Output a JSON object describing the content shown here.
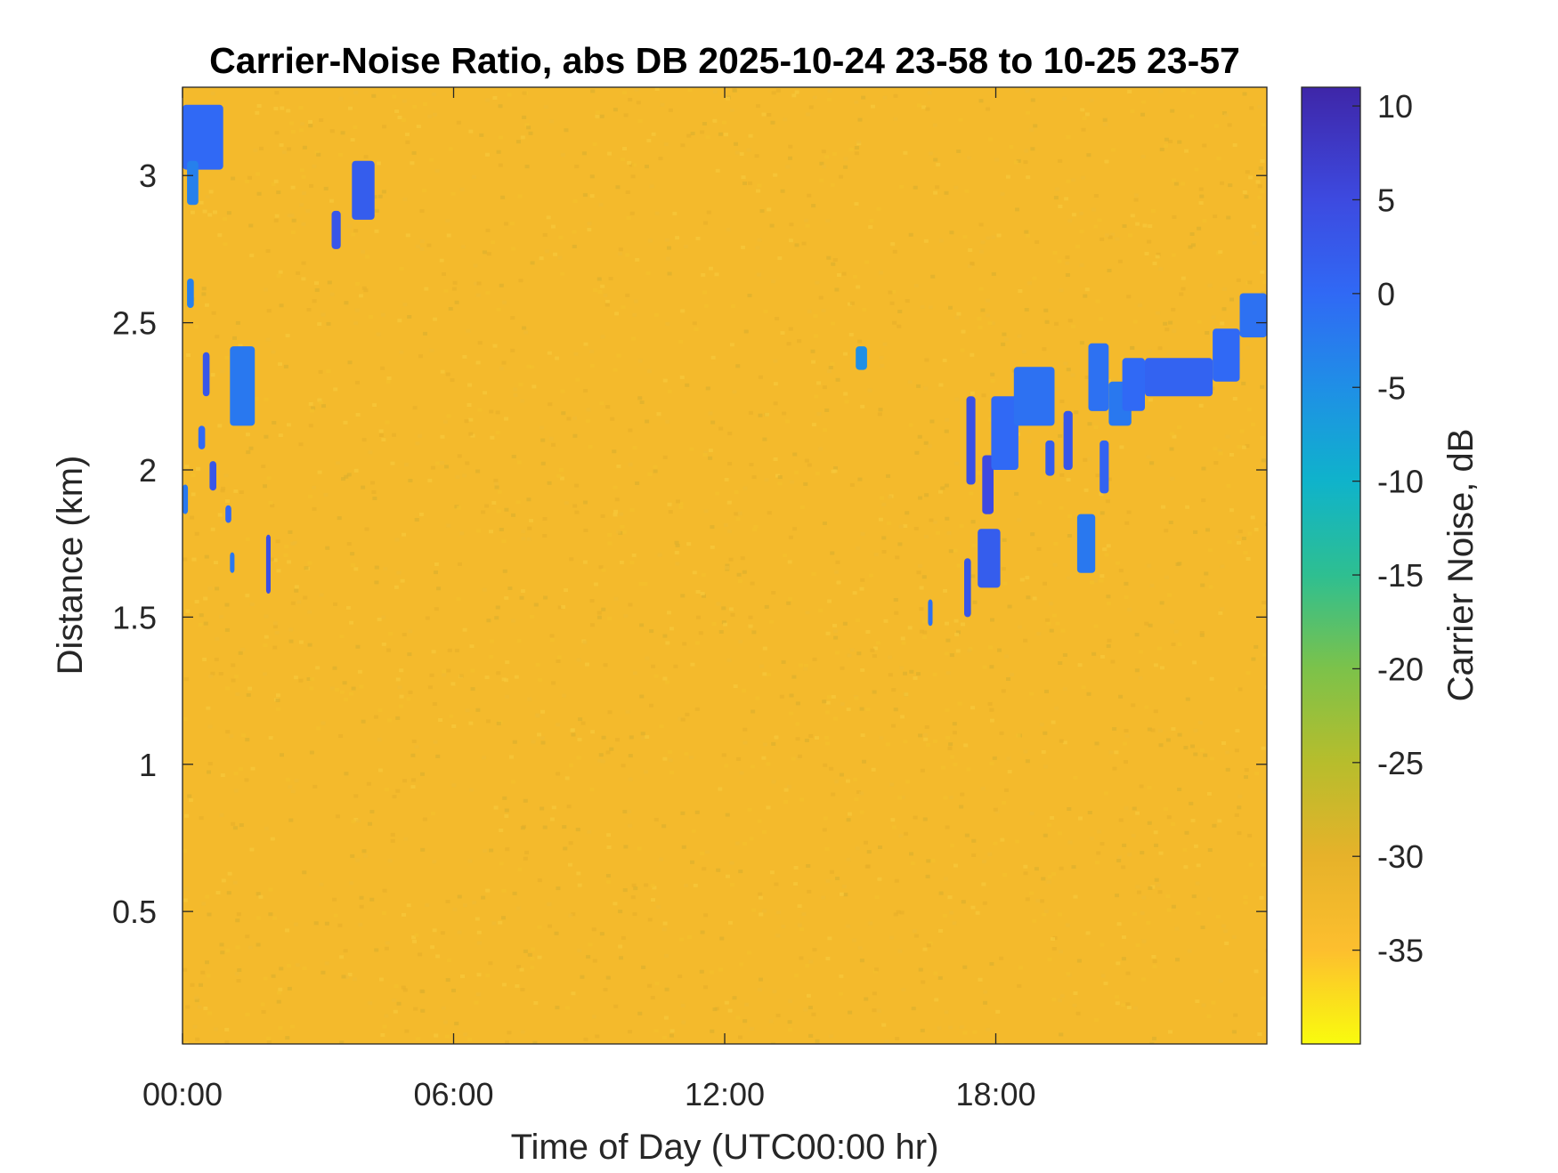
{
  "chart_data": {
    "type": "heatmap",
    "title": "Carrier-Noise Ratio, abs DB 2025-10-24 23-58 to 10-25 23-57",
    "xlabel": "Time of Day (UTC00:00 hr)",
    "ylabel": "Distance (km)",
    "colorbar_label": "Carrier Noise, dB",
    "xlim_hours": [
      0,
      24
    ],
    "x_ticks": [
      {
        "value": 0,
        "label": "00:00"
      },
      {
        "value": 6,
        "label": "06:00"
      },
      {
        "value": 12,
        "label": "12:00"
      },
      {
        "value": 18,
        "label": "18:00"
      }
    ],
    "ylim_km": [
      0.05,
      3.3
    ],
    "y_ticks": [
      {
        "value": 0.5,
        "label": "0.5"
      },
      {
        "value": 1,
        "label": "1"
      },
      {
        "value": 1.5,
        "label": "1.5"
      },
      {
        "value": 2,
        "label": "2"
      },
      {
        "value": 2.5,
        "label": "2.5"
      },
      {
        "value": 3,
        "label": "3"
      }
    ],
    "clim_db": [
      -40,
      11
    ],
    "colorbar_ticks": [
      {
        "value": 10,
        "label": "10"
      },
      {
        "value": 5,
        "label": "5"
      },
      {
        "value": 0,
        "label": "0"
      },
      {
        "value": -5,
        "label": "-5"
      },
      {
        "value": -10,
        "label": "-10"
      },
      {
        "value": -15,
        "label": "-15"
      },
      {
        "value": -20,
        "label": "-20"
      },
      {
        "value": -25,
        "label": "-25"
      },
      {
        "value": -30,
        "label": "-30"
      },
      {
        "value": -35,
        "label": "-35"
      }
    ],
    "background_level_db": -33,
    "colormap_stops": [
      {
        "value": -40,
        "color": "#f9fb0e"
      },
      {
        "value": -35,
        "color": "#fdbf2e"
      },
      {
        "value": -30,
        "color": "#e6b22a"
      },
      {
        "value": -25,
        "color": "#b7bd2c"
      },
      {
        "value": -20,
        "color": "#7cc24a"
      },
      {
        "value": -15,
        "color": "#2ebf91"
      },
      {
        "value": -10,
        "color": "#0fb3cb"
      },
      {
        "value": -5,
        "color": "#1f8fe6"
      },
      {
        "value": 0,
        "color": "#3069f5"
      },
      {
        "value": 5,
        "color": "#3d4ae0"
      },
      {
        "value": 11,
        "color": "#3e26a8"
      }
    ],
    "features": [
      {
        "t0": 0.0,
        "t1": 0.9,
        "d0": 3.02,
        "d1": 3.24,
        "level_db": 0
      },
      {
        "t0": 0.1,
        "t1": 0.35,
        "d0": 2.9,
        "d1": 3.05,
        "level_db": -3
      },
      {
        "t0": 3.3,
        "t1": 3.5,
        "d0": 2.75,
        "d1": 2.88,
        "level_db": 3
      },
      {
        "t0": 3.75,
        "t1": 4.25,
        "d0": 2.85,
        "d1": 3.05,
        "level_db": 2
      },
      {
        "t0": 0.1,
        "t1": 0.25,
        "d0": 2.55,
        "d1": 2.65,
        "level_db": -3
      },
      {
        "t0": 0.45,
        "t1": 0.6,
        "d0": 2.25,
        "d1": 2.4,
        "level_db": 3
      },
      {
        "t0": 1.05,
        "t1": 1.6,
        "d0": 2.15,
        "d1": 2.42,
        "level_db": -2
      },
      {
        "t0": 0.35,
        "t1": 0.5,
        "d0": 2.07,
        "d1": 2.15,
        "level_db": 0
      },
      {
        "t0": 0.6,
        "t1": 0.75,
        "d0": 1.93,
        "d1": 2.03,
        "level_db": 3
      },
      {
        "t0": 0.0,
        "t1": 0.12,
        "d0": 1.85,
        "d1": 1.95,
        "level_db": -2
      },
      {
        "t0": 0.95,
        "t1": 1.08,
        "d0": 1.82,
        "d1": 1.88,
        "level_db": 0
      },
      {
        "t0": 1.05,
        "t1": 1.15,
        "d0": 1.65,
        "d1": 1.72,
        "level_db": -2
      },
      {
        "t0": 1.85,
        "t1": 1.95,
        "d0": 1.58,
        "d1": 1.78,
        "level_db": 4
      },
      {
        "t0": 14.9,
        "t1": 15.15,
        "d0": 2.34,
        "d1": 2.42,
        "level_db": -5
      },
      {
        "t0": 16.5,
        "t1": 16.6,
        "d0": 1.47,
        "d1": 1.56,
        "level_db": -1
      },
      {
        "t0": 17.3,
        "t1": 17.45,
        "d0": 1.5,
        "d1": 1.7,
        "level_db": 3
      },
      {
        "t0": 17.35,
        "t1": 17.55,
        "d0": 1.95,
        "d1": 2.25,
        "level_db": 4
      },
      {
        "t0": 17.6,
        "t1": 18.1,
        "d0": 1.6,
        "d1": 1.8,
        "level_db": 2
      },
      {
        "t0": 17.7,
        "t1": 17.95,
        "d0": 1.85,
        "d1": 2.05,
        "level_db": 5
      },
      {
        "t0": 17.9,
        "t1": 18.5,
        "d0": 2.0,
        "d1": 2.25,
        "level_db": 0
      },
      {
        "t0": 18.4,
        "t1": 19.3,
        "d0": 2.15,
        "d1": 2.35,
        "level_db": -1
      },
      {
        "t0": 19.1,
        "t1": 19.3,
        "d0": 1.98,
        "d1": 2.1,
        "level_db": 2
      },
      {
        "t0": 19.5,
        "t1": 19.7,
        "d0": 2.0,
        "d1": 2.2,
        "level_db": 3
      },
      {
        "t0": 19.8,
        "t1": 20.2,
        "d0": 1.65,
        "d1": 1.85,
        "level_db": -2
      },
      {
        "t0": 20.05,
        "t1": 20.5,
        "d0": 2.2,
        "d1": 2.43,
        "level_db": -1
      },
      {
        "t0": 20.3,
        "t1": 20.5,
        "d0": 1.92,
        "d1": 2.1,
        "level_db": 1
      },
      {
        "t0": 20.5,
        "t1": 21.0,
        "d0": 2.15,
        "d1": 2.3,
        "level_db": -2
      },
      {
        "t0": 20.8,
        "t1": 21.3,
        "d0": 2.2,
        "d1": 2.38,
        "level_db": 0
      },
      {
        "t0": 21.3,
        "t1": 22.8,
        "d0": 2.25,
        "d1": 2.38,
        "level_db": 1
      },
      {
        "t0": 22.8,
        "t1": 23.4,
        "d0": 2.3,
        "d1": 2.48,
        "level_db": 0
      },
      {
        "t0": 23.4,
        "t1": 24.0,
        "d0": 2.45,
        "d1": 2.6,
        "level_db": -1
      }
    ]
  }
}
